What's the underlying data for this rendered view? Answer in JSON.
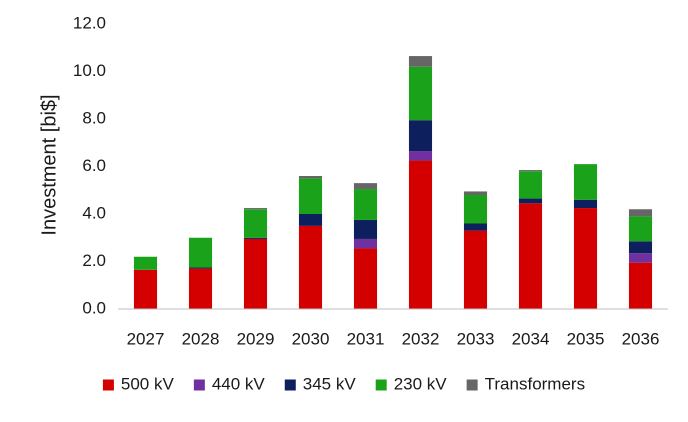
{
  "chart_data": {
    "type": "bar",
    "stacked": true,
    "title": "",
    "xlabel": "",
    "ylabel": "Investment  [bi$]",
    "ylim": [
      0,
      12
    ],
    "ytick_step": 2,
    "ytick_labels": [
      "0.0",
      "2.0",
      "4.0",
      "6.0",
      "8.0",
      "10.0",
      "12.0"
    ],
    "grid": false,
    "legend_position": "bottom",
    "categories": [
      "2027",
      "2028",
      "2029",
      "2030",
      "2031",
      "2032",
      "2033",
      "2034",
      "2035",
      "2036"
    ],
    "series": [
      {
        "name": "500 kV",
        "color": "#d40000",
        "values": [
          1.65,
          1.7,
          2.95,
          3.5,
          2.55,
          6.25,
          3.3,
          4.45,
          4.25,
          1.95
        ]
      },
      {
        "name": "440 kV",
        "color": "#7030a0",
        "values": [
          0.0,
          0.0,
          0.0,
          0.0,
          0.4,
          0.4,
          0.0,
          0.0,
          0.0,
          0.4
        ]
      },
      {
        "name": "345 kV",
        "color": "#0d1f5c",
        "values": [
          0.0,
          0.05,
          0.05,
          0.5,
          0.8,
          1.3,
          0.3,
          0.2,
          0.35,
          0.5
        ]
      },
      {
        "name": "230 kV",
        "color": "#1aa31a",
        "values": [
          0.55,
          1.25,
          1.2,
          1.5,
          1.3,
          2.25,
          1.2,
          1.15,
          1.5,
          1.05
        ]
      },
      {
        "name": "Transformers",
        "color": "#666666",
        "values": [
          0.0,
          0.0,
          0.05,
          0.1,
          0.25,
          0.45,
          0.15,
          0.05,
          0.0,
          0.3
        ]
      }
    ]
  }
}
